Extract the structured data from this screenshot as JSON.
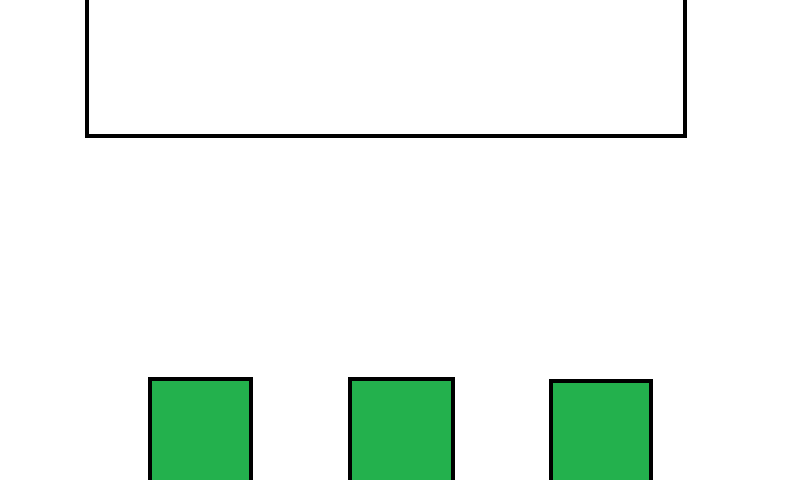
{
  "colors": {
    "background": "#ffffff",
    "outline": "#000000",
    "box_fill": "#ffffff",
    "tile_fill": "#23b14d"
  },
  "top_box": {},
  "tiles": [
    {},
    {},
    {}
  ]
}
